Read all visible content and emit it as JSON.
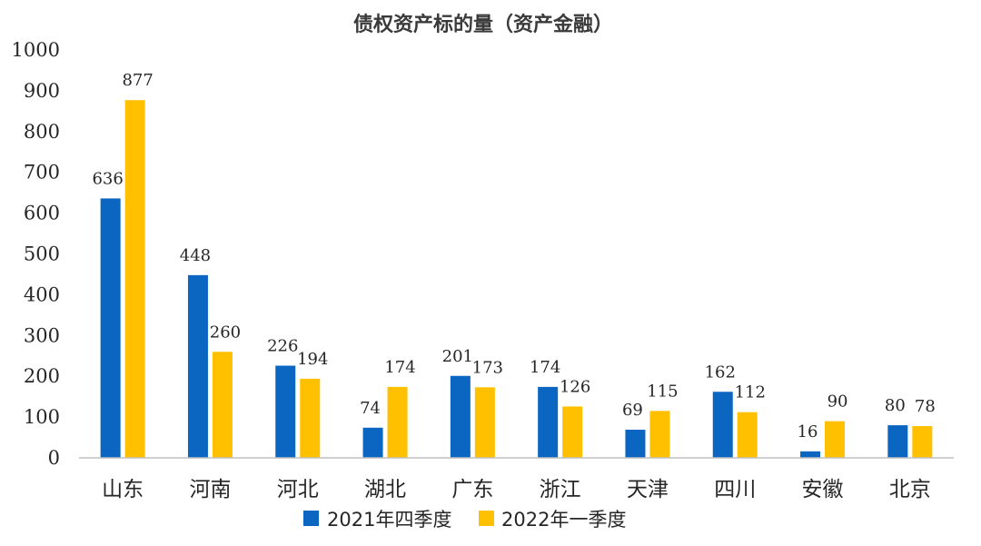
{
  "chart_data": {
    "type": "bar",
    "title": "债权资产标的量（资产金融）",
    "categories": [
      "山东",
      "河南",
      "河北",
      "湖北",
      "广东",
      "浙江",
      "天津",
      "四川",
      "安徽",
      "北京"
    ],
    "series": [
      {
        "name": "2021年四季度",
        "color": "#0B66C2",
        "values": [
          636,
          448,
          226,
          74,
          201,
          174,
          69,
          162,
          16,
          80
        ]
      },
      {
        "name": "2022年一季度",
        "color": "#FFC000",
        "values": [
          877,
          260,
          194,
          174,
          173,
          126,
          115,
          112,
          90,
          78
        ]
      }
    ],
    "ylim": [
      0,
      1000
    ],
    "yticks": [
      0,
      100,
      200,
      300,
      400,
      500,
      600,
      700,
      800,
      900,
      1000
    ],
    "xlabel": "",
    "ylabel": "",
    "grid": false,
    "legend_position": "bottom"
  }
}
